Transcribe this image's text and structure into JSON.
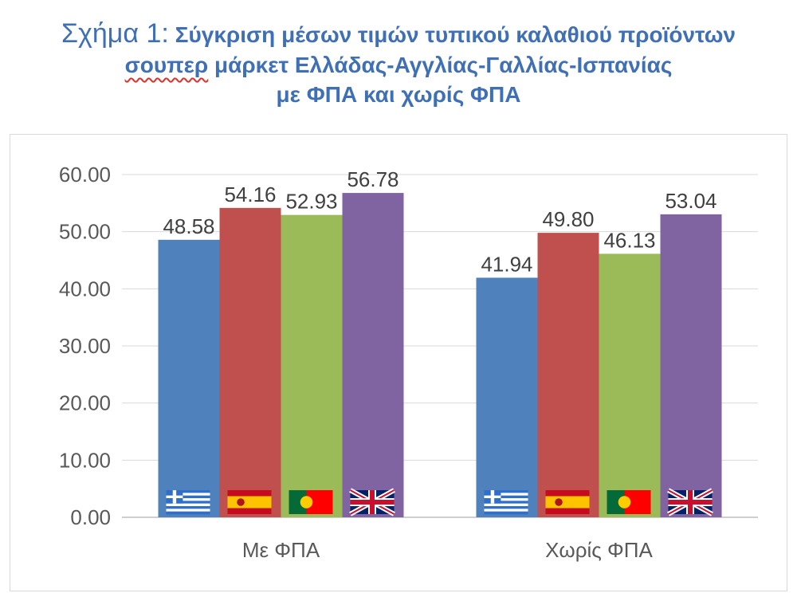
{
  "title": {
    "prefix": "Σχήμα 1:",
    "line1_rest": "Σύγκριση μέσων τιμών τυπικού καλαθιού προϊόντων",
    "line2_word": "σουπερ",
    "line2_rest": "μάρκετ Ελλάδας-Αγγλίας-Γαλλίας-Ισπανίας",
    "line3": "με ΦΠΑ και χωρίς ΦΠΑ"
  },
  "chart_data": {
    "type": "bar",
    "categories": [
      "Με ΦΠΑ",
      "Χωρίς ΦΠΑ"
    ],
    "series": [
      {
        "values": [
          48.58,
          41.94
        ],
        "color": "#4f81bd",
        "flag": "greece-flag-icon"
      },
      {
        "values": [
          54.16,
          49.8
        ],
        "color": "#c0504d",
        "flag": "spain-flag-icon"
      },
      {
        "values": [
          52.93,
          46.13
        ],
        "color": "#9bbb59",
        "flag": "portugal-flag-icon"
      },
      {
        "values": [
          56.78,
          53.04
        ],
        "color": "#8064a2",
        "flag": "uk-flag-icon"
      }
    ],
    "data_labels": [
      [
        "48.58",
        "41.94"
      ],
      [
        "54.16",
        "49.80"
      ],
      [
        "52.93",
        "46.13"
      ],
      [
        "56.78",
        "53.04"
      ]
    ],
    "y_ticks": [
      "0.00",
      "10.00",
      "20.00",
      "30.00",
      "40.00",
      "50.00",
      "60.00"
    ],
    "ylim": [
      0,
      60
    ],
    "grid": true,
    "legend": "none"
  }
}
